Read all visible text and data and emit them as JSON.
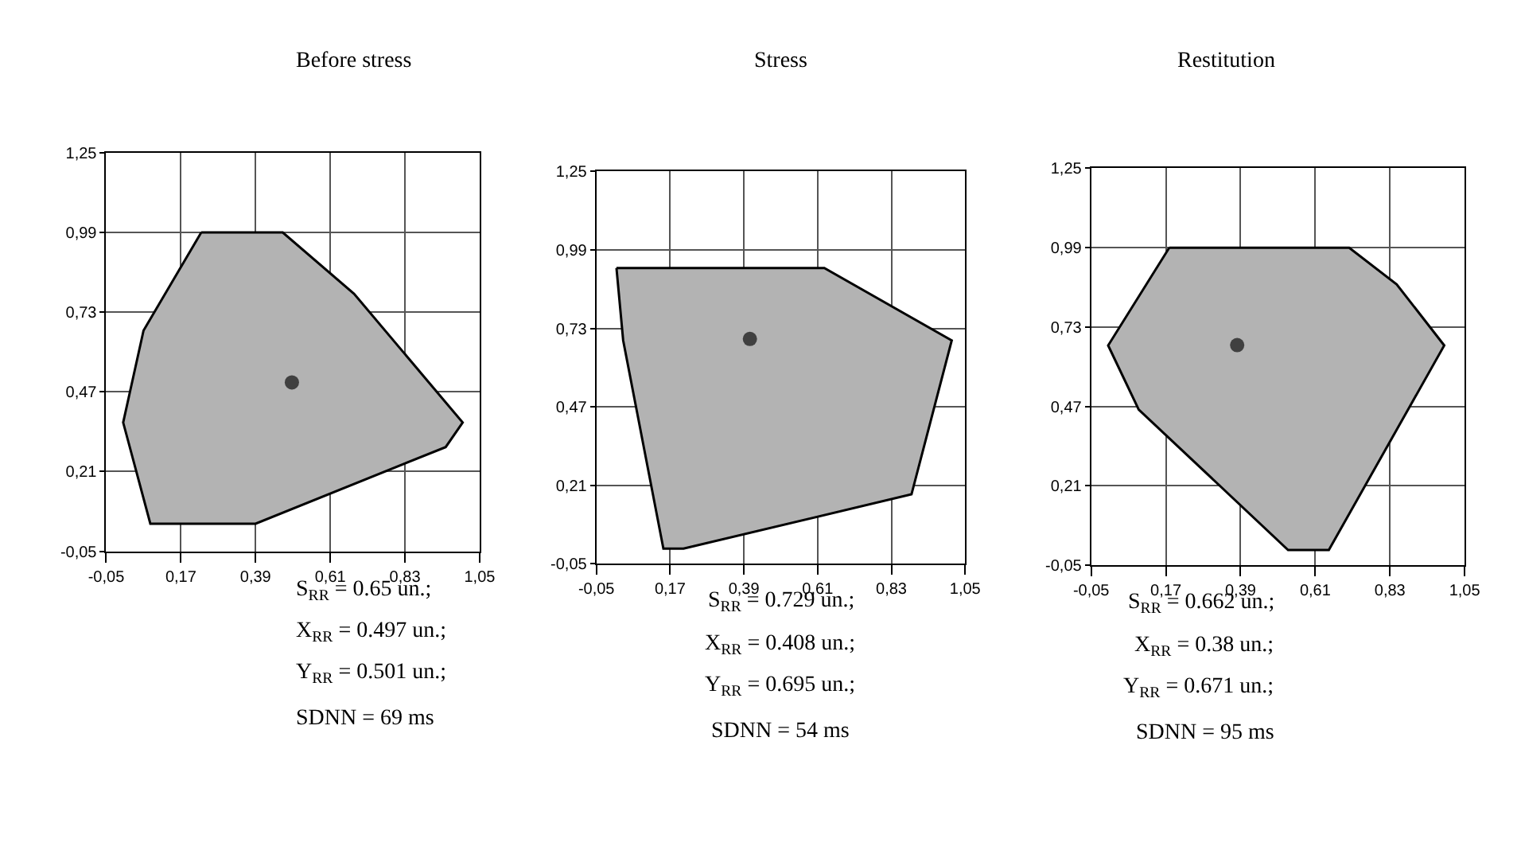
{
  "chart_data": [
    {
      "type": "scatter",
      "title": "Before stress",
      "xlim": [
        -0.05,
        1.05
      ],
      "ylim": [
        -0.05,
        1.25
      ],
      "xticks": [
        {
          "value": -0.05,
          "label": "-0,05"
        },
        {
          "value": 0.17,
          "label": "0,17"
        },
        {
          "value": 0.39,
          "label": "0,39"
        },
        {
          "value": 0.61,
          "label": "0,61"
        },
        {
          "value": 0.83,
          "label": "0,83"
        },
        {
          "value": 1.05,
          "label": "1,05"
        }
      ],
      "yticks": [
        {
          "value": -0.05,
          "label": "-0,05"
        },
        {
          "value": 0.21,
          "label": "0,21"
        },
        {
          "value": 0.47,
          "label": "0,47"
        },
        {
          "value": 0.73,
          "label": "0,73"
        },
        {
          "value": 0.99,
          "label": "0,99"
        },
        {
          "value": 1.25,
          "label": "1,25"
        }
      ],
      "grid": true,
      "series": [
        {
          "type": "area",
          "color": "#b3b3b3",
          "x": [
            0.23,
            0.47,
            0.68,
            1.0,
            0.95,
            0.39,
            0.08,
            0.0,
            0.06,
            0.23
          ],
          "values": [
            0.99,
            0.99,
            0.79,
            0.37,
            0.29,
            0.04,
            0.04,
            0.37,
            0.67,
            0.99
          ]
        },
        {
          "type": "scatter",
          "marker": "circle",
          "color": "#404040",
          "x": [
            0.497
          ],
          "values": [
            0.501
          ]
        }
      ],
      "annotations": [
        "S$_{RR}$ = 0.65 un.;",
        "X$_{RR}$ = 0.497 un.;",
        "Y$_{RR}$ = 0.501 un.;",
        "SDNN = 69 ms"
      ]
    },
    {
      "type": "scatter",
      "title": "Stress",
      "xlim": [
        -0.05,
        1.05
      ],
      "ylim": [
        -0.05,
        1.25
      ],
      "xticks": [
        {
          "value": -0.05,
          "label": "-0,05"
        },
        {
          "value": 0.17,
          "label": "0,17"
        },
        {
          "value": 0.39,
          "label": "0,39"
        },
        {
          "value": 0.61,
          "label": "0,61"
        },
        {
          "value": 0.83,
          "label": "0,83"
        },
        {
          "value": 1.05,
          "label": "1,05"
        }
      ],
      "yticks": [
        {
          "value": -0.05,
          "label": "-0,05"
        },
        {
          "value": 0.21,
          "label": "0,21"
        },
        {
          "value": 0.47,
          "label": "0,47"
        },
        {
          "value": 0.73,
          "label": "0,73"
        },
        {
          "value": 0.99,
          "label": "0,99"
        },
        {
          "value": 1.25,
          "label": "1,25"
        }
      ],
      "grid": true,
      "series": [
        {
          "type": "area",
          "color": "#b3b3b3",
          "x": [
            0.01,
            0.63,
            1.01,
            0.89,
            0.21,
            0.15,
            0.03,
            0.01
          ],
          "values": [
            0.93,
            0.93,
            0.69,
            0.18,
            0.0,
            0.0,
            0.69,
            0.93
          ]
        },
        {
          "type": "scatter",
          "marker": "circle",
          "color": "#404040",
          "x": [
            0.408
          ],
          "values": [
            0.695
          ]
        }
      ],
      "annotations": [
        "S$_{RR}$ = 0.729 un.;",
        "X$_{RR}$ = 0.408 un.;",
        "Y$_{RR}$ = 0.695 un.;",
        "SDNN = 54 ms"
      ]
    },
    {
      "type": "scatter",
      "title": "Restitution",
      "xlim": [
        -0.05,
        1.05
      ],
      "ylim": [
        -0.05,
        1.25
      ],
      "xticks": [
        {
          "value": -0.05,
          "label": "-0,05"
        },
        {
          "value": 0.17,
          "label": "0,17"
        },
        {
          "value": 0.39,
          "label": "0,39"
        },
        {
          "value": 0.61,
          "label": "0,61"
        },
        {
          "value": 0.83,
          "label": "0,83"
        },
        {
          "value": 1.05,
          "label": "1,05"
        }
      ],
      "yticks": [
        {
          "value": -0.05,
          "label": "-0,05"
        },
        {
          "value": 0.21,
          "label": "0,21"
        },
        {
          "value": 0.47,
          "label": "0,47"
        },
        {
          "value": 0.73,
          "label": "0,73"
        },
        {
          "value": 0.99,
          "label": "0,99"
        },
        {
          "value": 1.25,
          "label": "1,25"
        }
      ],
      "grid": true,
      "series": [
        {
          "type": "area",
          "color": "#b3b3b3",
          "x": [
            0.18,
            0.71,
            0.85,
            0.99,
            0.65,
            0.53,
            0.09,
            0.0,
            0.18
          ],
          "values": [
            0.99,
            0.99,
            0.87,
            0.67,
            0.0,
            0.0,
            0.46,
            0.67,
            0.99
          ]
        },
        {
          "type": "scatter",
          "marker": "circle",
          "color": "#404040",
          "x": [
            0.38
          ],
          "values": [
            0.671
          ]
        }
      ],
      "annotations": [
        "S$_{RR}$ = 0.662 un.;",
        "X$_{RR}$ = 0.38 un.;",
        "Y$_{RR}$ = 0.671 un.;",
        "SDNN = 95 ms"
      ]
    }
  ]
}
